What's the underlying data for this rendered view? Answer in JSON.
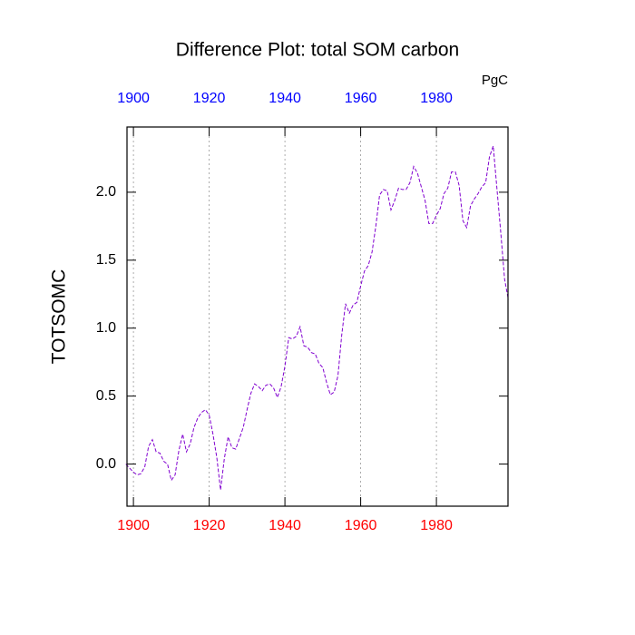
{
  "chart_data": {
    "type": "line",
    "title": "Difference Plot: total SOM carbon",
    "units": "PgC",
    "ylabel": "TOTSOMC",
    "x": [
      1898,
      1899,
      1900,
      1901,
      1902,
      1903,
      1904,
      1905,
      1906,
      1907,
      1908,
      1909,
      1910,
      1911,
      1912,
      1913,
      1914,
      1915,
      1916,
      1917,
      1918,
      1919,
      1920,
      1921,
      1922,
      1923,
      1924,
      1925,
      1926,
      1927,
      1928,
      1929,
      1930,
      1931,
      1932,
      1933,
      1934,
      1935,
      1936,
      1937,
      1938,
      1939,
      1940,
      1941,
      1942,
      1943,
      1944,
      1945,
      1946,
      1947,
      1948,
      1949,
      1950,
      1951,
      1952,
      1953,
      1954,
      1955,
      1956,
      1957,
      1958,
      1959,
      1960,
      1961,
      1962,
      1963,
      1964,
      1965,
      1966,
      1967,
      1968,
      1969,
      1970,
      1971,
      1972,
      1973,
      1974,
      1975,
      1976,
      1977,
      1978,
      1979,
      1980,
      1981,
      1982,
      1983,
      1984,
      1985,
      1986,
      1987,
      1988,
      1989,
      1990,
      1991,
      1992,
      1993,
      1994,
      1995,
      1996,
      1997,
      1998,
      1999
    ],
    "series": [
      {
        "name": "TOTSOMC",
        "color": "#8000d0",
        "values": [
          0.0,
          -0.03,
          -0.06,
          -0.08,
          -0.07,
          -0.02,
          0.13,
          0.18,
          0.09,
          0.08,
          0.02,
          0.0,
          -0.12,
          -0.08,
          0.1,
          0.22,
          0.09,
          0.15,
          0.27,
          0.34,
          0.38,
          0.4,
          0.36,
          0.22,
          0.05,
          -0.19,
          0.04,
          0.2,
          0.12,
          0.11,
          0.19,
          0.27,
          0.4,
          0.52,
          0.59,
          0.57,
          0.54,
          0.58,
          0.59,
          0.56,
          0.49,
          0.57,
          0.72,
          0.93,
          0.92,
          0.94,
          1.01,
          0.87,
          0.86,
          0.82,
          0.81,
          0.74,
          0.71,
          0.6,
          0.51,
          0.53,
          0.65,
          0.95,
          1.18,
          1.11,
          1.17,
          1.19,
          1.31,
          1.42,
          1.46,
          1.56,
          1.75,
          1.98,
          2.02,
          2.01,
          1.87,
          1.94,
          2.03,
          2.02,
          2.02,
          2.07,
          2.19,
          2.14,
          2.04,
          1.94,
          1.77,
          1.77,
          1.83,
          1.88,
          1.99,
          2.03,
          2.15,
          2.15,
          2.05,
          1.79,
          1.74,
          1.9,
          1.95,
          1.99,
          2.04,
          2.07,
          2.26,
          2.34,
          2.02,
          1.7,
          1.36,
          1.21
        ]
      }
    ],
    "xlim": [
      1898.3,
      1998.9
    ],
    "ylim": [
      -0.31,
      2.48
    ],
    "xticks": [
      1900,
      1920,
      1940,
      1960,
      1980
    ],
    "yticks": [
      {
        "value": 0,
        "label": "0.0"
      },
      0.5,
      {
        "value": 1,
        "label": "1.0"
      },
      1.5,
      {
        "value": 2,
        "label": "2.0"
      }
    ],
    "grid": "x",
    "top_tick_label_color": "#0000ff",
    "bottom_tick_label_color": "#ff0000"
  }
}
